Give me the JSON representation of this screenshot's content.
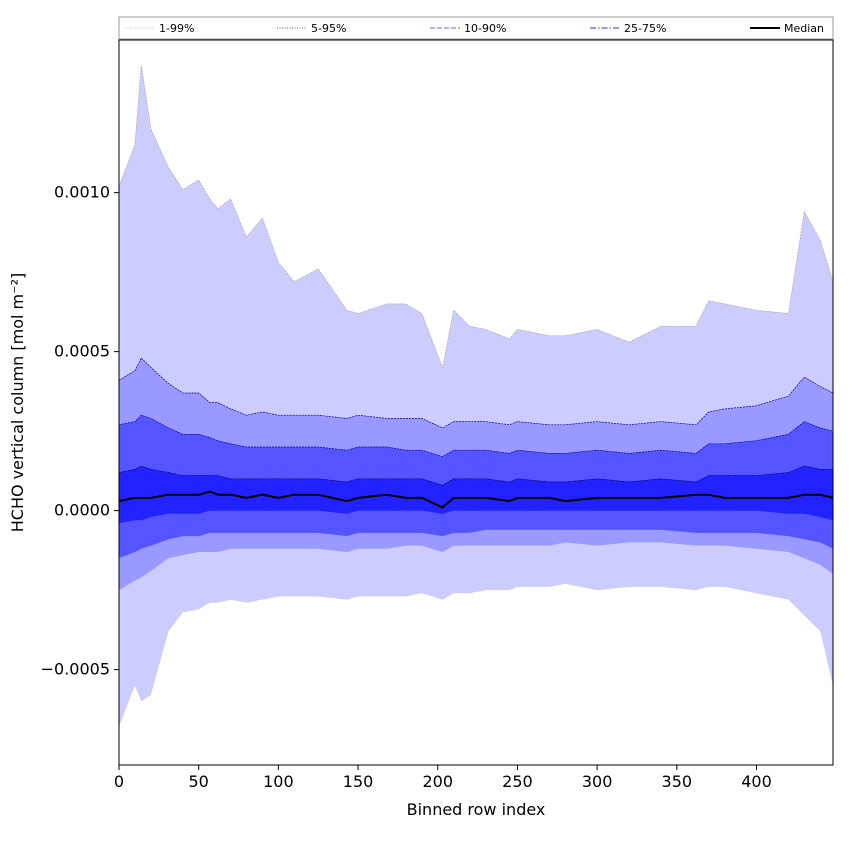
{
  "chart_data": {
    "type": "area",
    "title": "",
    "xlabel": "Binned row index",
    "ylabel": "HCHO vertical column [mol m⁻²]",
    "xlim": [
      0,
      448
    ],
    "ylim": [
      -0.0008,
      0.00148
    ],
    "grid": false,
    "legend_placement": "top",
    "x_ticks": [
      {
        "value": 0,
        "label": "0"
      },
      {
        "value": 50,
        "label": "50"
      },
      {
        "value": 100,
        "label": "100"
      },
      {
        "value": 150,
        "label": "150"
      },
      {
        "value": 200,
        "label": "200"
      },
      {
        "value": 250,
        "label": "250"
      },
      {
        "value": 300,
        "label": "300"
      },
      {
        "value": 350,
        "label": "350"
      },
      {
        "value": 400,
        "label": "400"
      }
    ],
    "y_ticks": [
      {
        "value": -0.0005,
        "label": "−0.0005"
      },
      {
        "value": 0.0,
        "label": "0.0000"
      },
      {
        "value": 0.0005,
        "label": "0.0005"
      },
      {
        "value": 0.001,
        "label": "0.0010"
      }
    ],
    "x": [
      0,
      10,
      14,
      20,
      31,
      40,
      50,
      57,
      62,
      70,
      80,
      90,
      100,
      110,
      125,
      143,
      150,
      168,
      180,
      190,
      203,
      210,
      220,
      230,
      245,
      250,
      270,
      280,
      300,
      320,
      340,
      362,
      370,
      380,
      400,
      420,
      430,
      440,
      448
    ],
    "bands": [
      {
        "name": "1-99%",
        "fill": "#ccccff",
        "line_color": "#aaaaaa",
        "lower": [
          -0.00068,
          -0.00055,
          -0.0006,
          -0.00058,
          -0.00038,
          -0.00032,
          -0.00031,
          -0.00029,
          -0.00029,
          -0.00028,
          -0.00029,
          -0.00028,
          -0.00027,
          -0.00027,
          -0.00027,
          -0.00028,
          -0.00027,
          -0.00027,
          -0.00027,
          -0.00026,
          -0.00028,
          -0.00026,
          -0.00026,
          -0.00025,
          -0.00025,
          -0.00024,
          -0.00024,
          -0.00023,
          -0.00025,
          -0.00024,
          -0.00024,
          -0.00025,
          -0.00024,
          -0.00024,
          -0.00026,
          -0.00028,
          -0.00033,
          -0.00038,
          -0.00055
        ],
        "upper": [
          0.00102,
          0.00115,
          0.0014,
          0.0012,
          0.00108,
          0.00101,
          0.00104,
          0.00098,
          0.00095,
          0.00098,
          0.00086,
          0.00092,
          0.00078,
          0.00072,
          0.00076,
          0.00063,
          0.00062,
          0.00065,
          0.00065,
          0.00062,
          0.00045,
          0.00063,
          0.00058,
          0.00057,
          0.00054,
          0.00057,
          0.00055,
          0.00055,
          0.00057,
          0.00053,
          0.00058,
          0.00058,
          0.00066,
          0.00065,
          0.00063,
          0.00062,
          0.00094,
          0.00085,
          0.00072
        ]
      },
      {
        "name": "5-95%",
        "fill": "#9999ff",
        "line_color": "#000080",
        "lower": [
          -0.00025,
          -0.00022,
          -0.00021,
          -0.00019,
          -0.00015,
          -0.00014,
          -0.00013,
          -0.00013,
          -0.00013,
          -0.00012,
          -0.00012,
          -0.00012,
          -0.00012,
          -0.00012,
          -0.00012,
          -0.00013,
          -0.00012,
          -0.00012,
          -0.00011,
          -0.00011,
          -0.00013,
          -0.00011,
          -0.00011,
          -0.00011,
          -0.00011,
          -0.00011,
          -0.00011,
          -0.0001,
          -0.00011,
          -0.0001,
          -0.0001,
          -0.00011,
          -0.00011,
          -0.00011,
          -0.00012,
          -0.00013,
          -0.00015,
          -0.00017,
          -0.0002
        ],
        "upper": [
          0.00041,
          0.00044,
          0.00048,
          0.00045,
          0.0004,
          0.00037,
          0.00037,
          0.00034,
          0.00034,
          0.00032,
          0.0003,
          0.00031,
          0.0003,
          0.0003,
          0.0003,
          0.00029,
          0.0003,
          0.00029,
          0.00029,
          0.00029,
          0.00026,
          0.00028,
          0.00028,
          0.00028,
          0.00027,
          0.00028,
          0.00027,
          0.00027,
          0.00028,
          0.00027,
          0.00028,
          0.00027,
          0.00031,
          0.00032,
          0.00033,
          0.00036,
          0.00042,
          0.00039,
          0.00037
        ]
      },
      {
        "name": "10-90%",
        "fill": "#5555ff",
        "line_color": "#000080",
        "lower": [
          -0.00015,
          -0.00013,
          -0.00012,
          -0.00011,
          -9e-05,
          -8e-05,
          -8e-05,
          -7e-05,
          -7e-05,
          -7e-05,
          -7e-05,
          -7e-05,
          -7e-05,
          -7e-05,
          -7e-05,
          -8e-05,
          -7e-05,
          -7e-05,
          -7e-05,
          -7e-05,
          -8e-05,
          -7e-05,
          -7e-05,
          -6e-05,
          -6e-05,
          -6e-05,
          -6e-05,
          -6e-05,
          -6e-05,
          -6e-05,
          -6e-05,
          -7e-05,
          -7e-05,
          -7e-05,
          -7e-05,
          -8e-05,
          -9e-05,
          -0.0001,
          -0.00012
        ],
        "upper": [
          0.00027,
          0.00028,
          0.0003,
          0.00029,
          0.00026,
          0.00024,
          0.00024,
          0.00023,
          0.00022,
          0.00021,
          0.0002,
          0.0002,
          0.0002,
          0.0002,
          0.0002,
          0.00019,
          0.0002,
          0.0002,
          0.00019,
          0.00019,
          0.00017,
          0.00019,
          0.00019,
          0.00019,
          0.00018,
          0.00019,
          0.00018,
          0.00018,
          0.00019,
          0.00018,
          0.00019,
          0.00018,
          0.00021,
          0.00021,
          0.00022,
          0.00024,
          0.00028,
          0.00026,
          0.00025
        ]
      },
      {
        "name": "25-75%",
        "fill": "#2222ff",
        "line_color": "#000060",
        "lower": [
          -4e-05,
          -3e-05,
          -3e-05,
          -2e-05,
          -1e-05,
          -1e-05,
          -1e-05,
          0.0,
          0.0,
          0.0,
          0.0,
          0.0,
          0.0,
          0.0,
          0.0,
          -1e-05,
          0.0,
          0.0,
          0.0,
          0.0,
          -1e-05,
          0.0,
          0.0,
          0.0,
          0.0,
          0.0,
          0.0,
          0.0,
          0.0,
          0.0,
          0.0,
          0.0,
          0.0,
          0.0,
          0.0,
          -1e-05,
          -1e-05,
          -2e-05,
          -3e-05
        ],
        "upper": [
          0.00012,
          0.00013,
          0.00014,
          0.00013,
          0.00012,
          0.00011,
          0.00011,
          0.00011,
          0.00011,
          0.0001,
          0.0001,
          0.0001,
          0.0001,
          0.0001,
          0.0001,
          9e-05,
          0.0001,
          0.0001,
          0.0001,
          0.0001,
          8e-05,
          0.0001,
          0.0001,
          0.0001,
          9e-05,
          0.0001,
          9e-05,
          9e-05,
          0.0001,
          9e-05,
          0.0001,
          9e-05,
          0.00011,
          0.00011,
          0.00011,
          0.00012,
          0.00014,
          0.00013,
          0.00013
        ]
      }
    ],
    "median": {
      "name": "Median",
      "color": "#000000",
      "values": [
        3e-05,
        4e-05,
        4e-05,
        4e-05,
        5e-05,
        5e-05,
        5e-05,
        6e-05,
        5e-05,
        5e-05,
        4e-05,
        5e-05,
        4e-05,
        5e-05,
        5e-05,
        3e-05,
        4e-05,
        5e-05,
        4e-05,
        4e-05,
        1e-05,
        4e-05,
        4e-05,
        4e-05,
        3e-05,
        4e-05,
        4e-05,
        3e-05,
        4e-05,
        4e-05,
        4e-05,
        5e-05,
        5e-05,
        4e-05,
        4e-05,
        4e-05,
        5e-05,
        5e-05,
        4e-05
      ]
    },
    "legend": [
      {
        "label": "1-99%",
        "color": "#cccccc",
        "style": "dotted"
      },
      {
        "label": "5-95%",
        "color": "#7777bb",
        "style": "dotted"
      },
      {
        "label": "10-90%",
        "color": "#8888ff",
        "style": "dashed"
      },
      {
        "label": "25-75%",
        "color": "#5555ff",
        "style": "dashdot"
      },
      {
        "label": "Median",
        "color": "#000000",
        "style": "solid"
      }
    ]
  }
}
